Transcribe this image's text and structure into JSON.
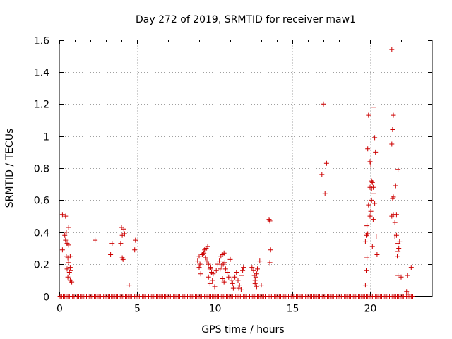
{
  "colors": {
    "series": "#cc0000",
    "grid": "#a0a0a0",
    "axis": "#000000"
  },
  "chart_data": {
    "type": "scatter",
    "title": "Day 272 of 2019, SRMTID for receiver maw1",
    "xlabel": "GPS time / hours",
    "ylabel": "SRMTID / TECUs",
    "xlim": [
      0,
      24
    ],
    "ylim": [
      0,
      1.6
    ],
    "xticks": [
      0,
      5,
      10,
      15,
      20
    ],
    "yticks": [
      0,
      0.2,
      0.4,
      0.6,
      0.8,
      1,
      1.2,
      1.4,
      1.6
    ],
    "xtick_labels": [
      "0",
      "5",
      "10",
      "15",
      "20"
    ],
    "ytick_labels": [
      "0",
      "0.2",
      "0.4",
      "0.6",
      "0.8",
      "1",
      "1.2",
      "1.4",
      "1.6"
    ],
    "grid": true,
    "marker": "+",
    "series": [
      {
        "name": "SRMTID",
        "points": [
          [
            0.2,
            0.51
          ],
          [
            0.4,
            0.5
          ],
          [
            0.2,
            0.29
          ],
          [
            0.35,
            0.38
          ],
          [
            0.45,
            0.4
          ],
          [
            0.6,
            0.43
          ],
          [
            0.4,
            0.35
          ],
          [
            0.5,
            0.33
          ],
          [
            0.6,
            0.32
          ],
          [
            0.45,
            0.25
          ],
          [
            0.55,
            0.24
          ],
          [
            0.7,
            0.25
          ],
          [
            0.6,
            0.21
          ],
          [
            0.5,
            0.17
          ],
          [
            0.7,
            0.18
          ],
          [
            0.65,
            0.15
          ],
          [
            0.75,
            0.16
          ],
          [
            0.55,
            0.12
          ],
          [
            0.7,
            0.1
          ],
          [
            0.8,
            0.09
          ],
          [
            2.3,
            0.35
          ],
          [
            3.3,
            0.26
          ],
          [
            3.4,
            0.33
          ],
          [
            4.0,
            0.43
          ],
          [
            4.15,
            0.42
          ],
          [
            4.05,
            0.38
          ],
          [
            4.2,
            0.39
          ],
          [
            3.95,
            0.33
          ],
          [
            4.05,
            0.24
          ],
          [
            4.1,
            0.23
          ],
          [
            4.5,
            0.07
          ],
          [
            4.9,
            0.35
          ],
          [
            4.85,
            0.29
          ],
          [
            8.9,
            0.22
          ],
          [
            9.0,
            0.18
          ],
          [
            9.05,
            0.2
          ],
          [
            9.1,
            0.14
          ],
          [
            9.0,
            0.25
          ],
          [
            9.2,
            0.26
          ],
          [
            9.3,
            0.27
          ],
          [
            9.35,
            0.29
          ],
          [
            9.45,
            0.3
          ],
          [
            9.55,
            0.31
          ],
          [
            9.4,
            0.24
          ],
          [
            9.5,
            0.22
          ],
          [
            9.6,
            0.2
          ],
          [
            9.7,
            0.17
          ],
          [
            9.8,
            0.15
          ],
          [
            9.6,
            0.12
          ],
          [
            9.7,
            0.08
          ],
          [
            9.85,
            0.1
          ],
          [
            9.75,
            0.18
          ],
          [
            9.9,
            0.14
          ],
          [
            10.0,
            0.06
          ],
          [
            10.1,
            0.16
          ],
          [
            10.2,
            0.2
          ],
          [
            10.3,
            0.22
          ],
          [
            10.4,
            0.25
          ],
          [
            10.5,
            0.26
          ],
          [
            10.6,
            0.27
          ],
          [
            10.35,
            0.17
          ],
          [
            10.45,
            0.19
          ],
          [
            10.55,
            0.2
          ],
          [
            10.65,
            0.21
          ],
          [
            10.7,
            0.17
          ],
          [
            10.8,
            0.15
          ],
          [
            10.9,
            0.12
          ],
          [
            10.5,
            0.11
          ],
          [
            10.6,
            0.09
          ],
          [
            11.0,
            0.23
          ],
          [
            11.1,
            0.1
          ],
          [
            11.15,
            0.08
          ],
          [
            11.2,
            0.05
          ],
          [
            11.3,
            0.12
          ],
          [
            11.4,
            0.15
          ],
          [
            11.5,
            0.1
          ],
          [
            11.55,
            0.05
          ],
          [
            11.6,
            0.07
          ],
          [
            11.7,
            0.04
          ],
          [
            11.75,
            0.13
          ],
          [
            11.8,
            0.16
          ],
          [
            11.85,
            0.18
          ],
          [
            12.4,
            0.18
          ],
          [
            12.5,
            0.16
          ],
          [
            12.55,
            0.13
          ],
          [
            12.6,
            0.1
          ],
          [
            12.65,
            0.12
          ],
          [
            12.7,
            0.14
          ],
          [
            12.75,
            0.17
          ],
          [
            12.6,
            0.08
          ],
          [
            12.7,
            0.06
          ],
          [
            12.9,
            0.22
          ],
          [
            13.0,
            0.07
          ],
          [
            13.5,
            0.48
          ],
          [
            13.55,
            0.47
          ],
          [
            13.6,
            0.29
          ],
          [
            13.55,
            0.21
          ],
          [
            16.9,
            0.76
          ],
          [
            17.0,
            1.2
          ],
          [
            17.1,
            0.64
          ],
          [
            17.2,
            0.83
          ],
          [
            19.7,
            0.07
          ],
          [
            19.75,
            0.16
          ],
          [
            19.8,
            0.24
          ],
          [
            19.7,
            0.34
          ],
          [
            19.75,
            0.38
          ],
          [
            19.85,
            0.39
          ],
          [
            19.8,
            0.44
          ],
          [
            19.9,
            0.57
          ],
          [
            20.0,
            0.5
          ],
          [
            20.05,
            0.53
          ],
          [
            20.1,
            0.6
          ],
          [
            19.85,
            0.92
          ],
          [
            19.9,
            1.13
          ],
          [
            20.0,
            0.84
          ],
          [
            20.05,
            0.82
          ],
          [
            20.1,
            0.72
          ],
          [
            20.15,
            0.71
          ],
          [
            20.0,
            0.68
          ],
          [
            20.1,
            0.67
          ],
          [
            20.2,
            0.68
          ],
          [
            20.25,
            0.64
          ],
          [
            20.3,
            0.99
          ],
          [
            20.35,
            0.9
          ],
          [
            20.25,
            1.18
          ],
          [
            20.15,
            0.31
          ],
          [
            20.2,
            0.48
          ],
          [
            20.3,
            0.58
          ],
          [
            20.4,
            0.37
          ],
          [
            20.45,
            0.26
          ],
          [
            21.4,
            1.54
          ],
          [
            21.5,
            1.13
          ],
          [
            21.45,
            1.04
          ],
          [
            21.4,
            0.95
          ],
          [
            21.5,
            0.62
          ],
          [
            21.45,
            0.61
          ],
          [
            21.4,
            0.5
          ],
          [
            21.5,
            0.51
          ],
          [
            21.6,
            0.46
          ],
          [
            21.65,
            0.69
          ],
          [
            21.8,
            0.79
          ],
          [
            21.7,
            0.51
          ],
          [
            21.6,
            0.37
          ],
          [
            21.7,
            0.38
          ],
          [
            21.8,
            0.33
          ],
          [
            21.85,
            0.3
          ],
          [
            21.9,
            0.34
          ],
          [
            21.8,
            0.28
          ],
          [
            21.75,
            0.25
          ],
          [
            21.8,
            0.13
          ],
          [
            22.0,
            0.12
          ],
          [
            22.35,
            0.03
          ],
          [
            22.4,
            0.13
          ],
          [
            22.45,
            0.01
          ],
          [
            22.65,
            0.18
          ]
        ]
      }
    ],
    "zero_band": {
      "y": 0,
      "x_from": 0.05,
      "x_to": 22.8,
      "step": 0.1,
      "gaps": [
        [
          1.0,
          1.1
        ],
        [
          5.6,
          5.7
        ],
        [
          7.8,
          7.9
        ],
        [
          12.1,
          12.2
        ],
        [
          13.3,
          13.4
        ]
      ]
    }
  }
}
